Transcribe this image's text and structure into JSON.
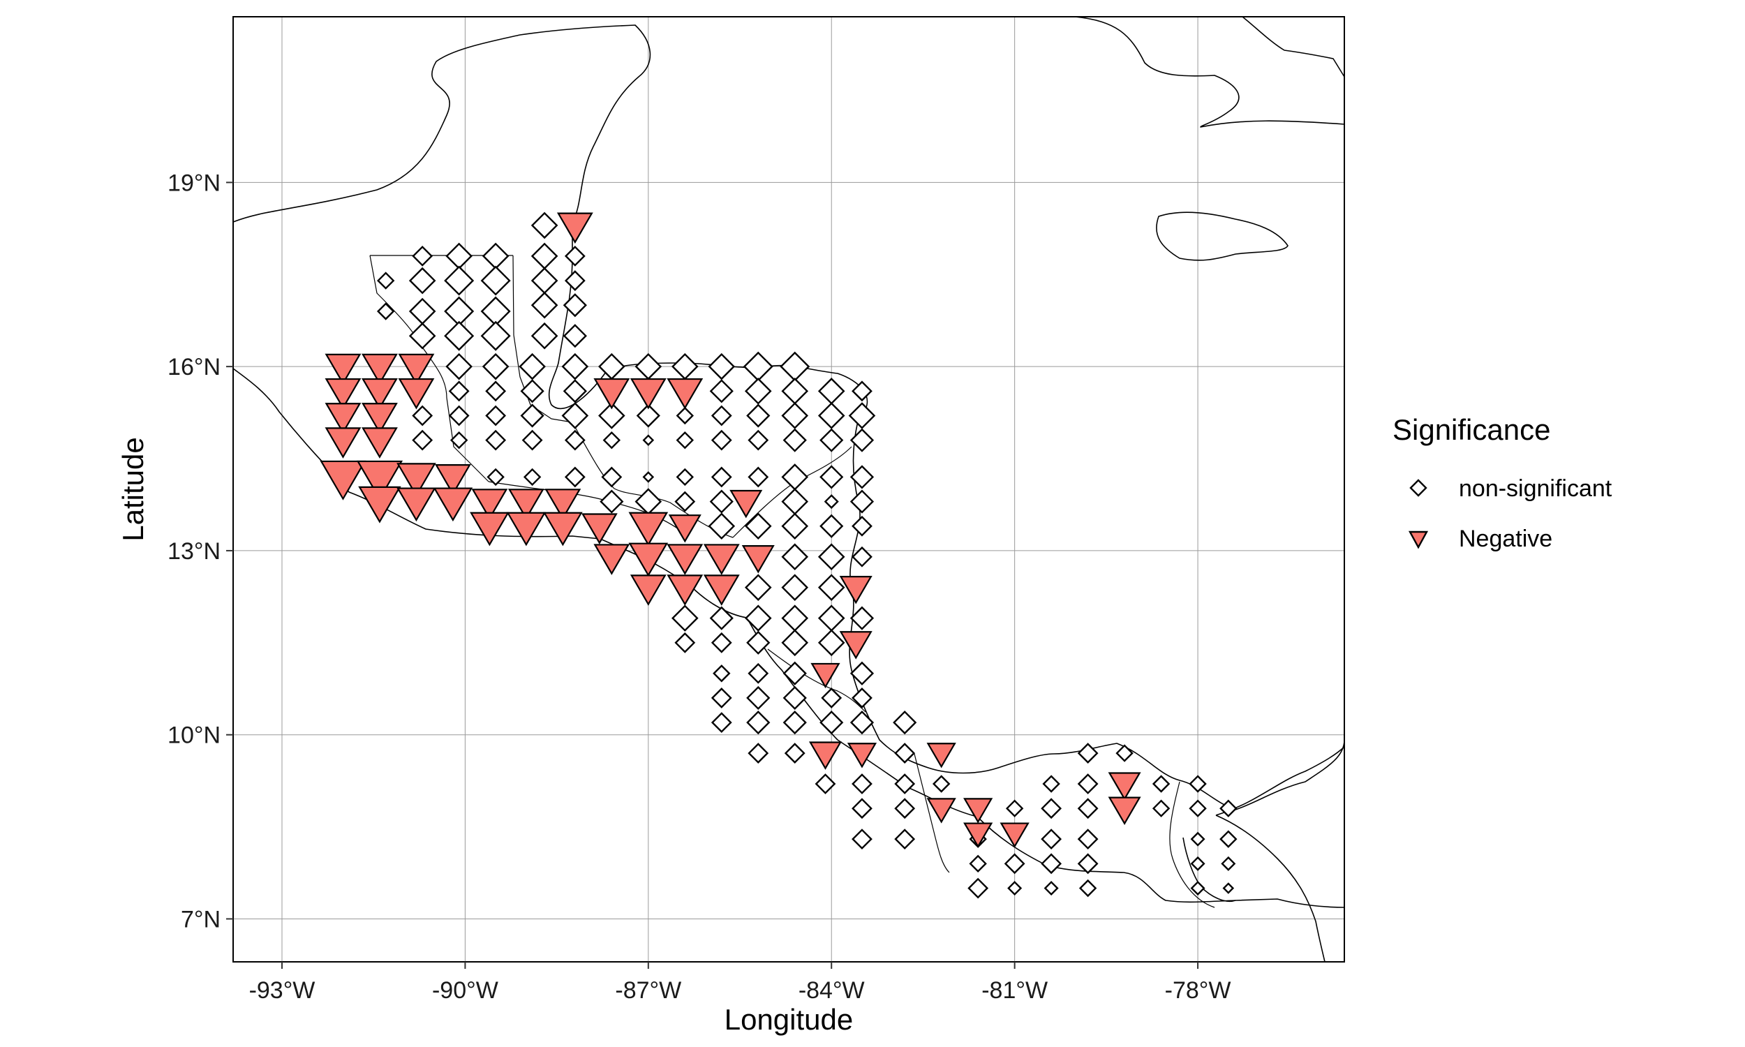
{
  "chart_data": {
    "type": "scatter",
    "title": "",
    "xlabel": "Longitude",
    "ylabel": "Latitude",
    "xlim": [
      -93.8,
      -75.6
    ],
    "ylim": [
      6.3,
      21.7
    ],
    "x_ticks": [
      {
        "value": -93,
        "label": "-93°W"
      },
      {
        "value": -90,
        "label": "-90°W"
      },
      {
        "value": -87,
        "label": "-87°W"
      },
      {
        "value": -84,
        "label": "-84°W"
      },
      {
        "value": -81,
        "label": "-81°W"
      },
      {
        "value": -78,
        "label": "-78°W"
      }
    ],
    "y_ticks": [
      {
        "value": 7,
        "label": "7°N"
      },
      {
        "value": 10,
        "label": "10°N"
      },
      {
        "value": 13,
        "label": "13°N"
      },
      {
        "value": 16,
        "label": "16°N"
      },
      {
        "value": 19,
        "label": "19°N"
      }
    ],
    "grid": true,
    "legend": {
      "title": "Significance",
      "placement": "right",
      "entries": [
        {
          "name": "non-significant",
          "shape": "diamond",
          "color": "#ffffff"
        },
        {
          "name": "Negative",
          "shape": "triangle-down",
          "color": "#F8766D"
        }
      ]
    },
    "colors": {
      "negative": "#F8766D",
      "stroke": "#000000",
      "grid": "#9a9a9a"
    },
    "series": [
      {
        "name": "Negative",
        "shape": "triangle-down",
        "points": [
          [
            -88.2,
            18.3,
            1
          ],
          [
            -92.0,
            16.0,
            1
          ],
          [
            -91.4,
            16.0,
            1
          ],
          [
            -90.8,
            16.0,
            1
          ],
          [
            -92.0,
            15.6,
            1
          ],
          [
            -91.4,
            15.6,
            1
          ],
          [
            -90.8,
            15.6,
            1
          ],
          [
            -87.6,
            15.6,
            1
          ],
          [
            -87.0,
            15.6,
            1
          ],
          [
            -86.4,
            15.6,
            1
          ],
          [
            -92.0,
            15.2,
            1
          ],
          [
            -91.4,
            15.2,
            1
          ],
          [
            -92.0,
            14.8,
            1
          ],
          [
            -91.4,
            14.8,
            1
          ],
          [
            -92.0,
            14.2,
            1.3
          ],
          [
            -91.4,
            14.2,
            1.3
          ],
          [
            -90.8,
            14.2,
            1.1
          ],
          [
            -90.2,
            14.2,
            1
          ],
          [
            -91.4,
            13.8,
            1.2
          ],
          [
            -90.8,
            13.8,
            1.1
          ],
          [
            -90.2,
            13.8,
            1.1
          ],
          [
            -89.6,
            13.8,
            1
          ],
          [
            -89.0,
            13.8,
            1
          ],
          [
            -88.4,
            13.8,
            1
          ],
          [
            -85.4,
            13.8,
            0.9
          ],
          [
            -89.6,
            13.4,
            1.1
          ],
          [
            -89.0,
            13.4,
            1.1
          ],
          [
            -88.4,
            13.4,
            1.1
          ],
          [
            -87.8,
            13.4,
            1
          ],
          [
            -87.0,
            13.4,
            1.1
          ],
          [
            -86.4,
            13.4,
            0.9
          ],
          [
            -87.6,
            12.9,
            1
          ],
          [
            -87.0,
            12.9,
            1.1
          ],
          [
            -86.4,
            12.9,
            1
          ],
          [
            -85.8,
            12.9,
            1
          ],
          [
            -85.2,
            12.9,
            0.9
          ],
          [
            -87.0,
            12.4,
            1
          ],
          [
            -86.4,
            12.4,
            1
          ],
          [
            -85.8,
            12.4,
            1
          ],
          [
            -83.6,
            12.4,
            0.9
          ],
          [
            -83.6,
            11.5,
            0.9
          ],
          [
            -84.1,
            11.0,
            0.8
          ],
          [
            -84.1,
            9.7,
            0.9
          ],
          [
            -83.5,
            9.7,
            0.8
          ],
          [
            -82.2,
            9.7,
            0.8
          ],
          [
            -82.2,
            8.8,
            0.8
          ],
          [
            -81.6,
            8.8,
            0.8
          ],
          [
            -81.6,
            8.4,
            0.8
          ],
          [
            -81.0,
            8.4,
            0.8
          ],
          [
            -79.2,
            9.2,
            0.9
          ],
          [
            -79.2,
            8.8,
            0.9
          ]
        ]
      },
      {
        "name": "non-significant",
        "shape": "diamond",
        "points": [
          [
            -88.7,
            18.3,
            0.8
          ],
          [
            -88.7,
            17.8,
            0.8
          ],
          [
            -88.2,
            17.8,
            0.6
          ],
          [
            -88.7,
            17.4,
            0.8
          ],
          [
            -88.2,
            17.4,
            0.6
          ],
          [
            -88.7,
            17.0,
            0.8
          ],
          [
            -88.2,
            17.0,
            0.7
          ],
          [
            -88.7,
            16.5,
            0.8
          ],
          [
            -88.2,
            16.5,
            0.7
          ],
          [
            -91.3,
            17.4,
            0.5
          ],
          [
            -91.3,
            16.9,
            0.5
          ],
          [
            -90.7,
            17.8,
            0.6
          ],
          [
            -90.1,
            17.8,
            0.8
          ],
          [
            -89.5,
            17.8,
            0.8
          ],
          [
            -90.7,
            17.4,
            0.8
          ],
          [
            -90.1,
            17.4,
            0.9
          ],
          [
            -89.5,
            17.4,
            0.9
          ],
          [
            -90.7,
            16.9,
            0.8
          ],
          [
            -90.1,
            16.9,
            0.9
          ],
          [
            -89.5,
            16.9,
            0.9
          ],
          [
            -90.7,
            16.5,
            0.8
          ],
          [
            -90.1,
            16.5,
            0.9
          ],
          [
            -89.5,
            16.5,
            0.9
          ],
          [
            -90.1,
            16.0,
            0.8
          ],
          [
            -89.5,
            16.0,
            0.8
          ],
          [
            -88.9,
            16.0,
            0.8
          ],
          [
            -88.2,
            16.0,
            0.8
          ],
          [
            -87.6,
            16.0,
            0.8
          ],
          [
            -87.0,
            16.0,
            0.8
          ],
          [
            -86.4,
            16.0,
            0.8
          ],
          [
            -85.8,
            16.0,
            0.8
          ],
          [
            -85.2,
            16.0,
            0.9
          ],
          [
            -84.6,
            16.0,
            0.9
          ],
          [
            -90.1,
            15.6,
            0.6
          ],
          [
            -89.5,
            15.6,
            0.6
          ],
          [
            -88.9,
            15.6,
            0.7
          ],
          [
            -88.2,
            15.6,
            0.7
          ],
          [
            -85.8,
            15.6,
            0.7
          ],
          [
            -85.2,
            15.6,
            0.8
          ],
          [
            -84.6,
            15.6,
            0.8
          ],
          [
            -84.0,
            15.6,
            0.8
          ],
          [
            -83.5,
            15.6,
            0.6
          ],
          [
            -90.7,
            15.2,
            0.6
          ],
          [
            -90.1,
            15.2,
            0.6
          ],
          [
            -89.5,
            15.2,
            0.6
          ],
          [
            -88.9,
            15.2,
            0.7
          ],
          [
            -88.2,
            15.2,
            0.8
          ],
          [
            -87.6,
            15.2,
            0.8
          ],
          [
            -87.0,
            15.2,
            0.7
          ],
          [
            -86.4,
            15.2,
            0.5
          ],
          [
            -85.8,
            15.2,
            0.6
          ],
          [
            -85.2,
            15.2,
            0.7
          ],
          [
            -84.6,
            15.2,
            0.8
          ],
          [
            -84.0,
            15.2,
            0.8
          ],
          [
            -83.5,
            15.2,
            0.8
          ],
          [
            -90.7,
            14.8,
            0.6
          ],
          [
            -90.1,
            14.8,
            0.5
          ],
          [
            -89.5,
            14.8,
            0.6
          ],
          [
            -88.9,
            14.8,
            0.6
          ],
          [
            -88.2,
            14.8,
            0.6
          ],
          [
            -87.6,
            14.8,
            0.5
          ],
          [
            -87.0,
            14.8,
            0.3
          ],
          [
            -86.4,
            14.8,
            0.5
          ],
          [
            -85.8,
            14.8,
            0.6
          ],
          [
            -85.2,
            14.8,
            0.6
          ],
          [
            -84.6,
            14.8,
            0.7
          ],
          [
            -84.0,
            14.8,
            0.7
          ],
          [
            -83.5,
            14.8,
            0.7
          ],
          [
            -89.5,
            14.2,
            0.5
          ],
          [
            -88.9,
            14.2,
            0.5
          ],
          [
            -88.2,
            14.2,
            0.6
          ],
          [
            -87.6,
            14.2,
            0.6
          ],
          [
            -87.0,
            14.2,
            0.3
          ],
          [
            -86.4,
            14.2,
            0.5
          ],
          [
            -85.8,
            14.2,
            0.6
          ],
          [
            -85.2,
            14.2,
            0.6
          ],
          [
            -84.6,
            14.2,
            0.8
          ],
          [
            -84.0,
            14.2,
            0.7
          ],
          [
            -83.5,
            14.2,
            0.7
          ],
          [
            -87.6,
            13.8,
            0.7
          ],
          [
            -87.0,
            13.8,
            0.8
          ],
          [
            -86.4,
            13.8,
            0.6
          ],
          [
            -85.8,
            13.8,
            0.7
          ],
          [
            -84.6,
            13.8,
            0.8
          ],
          [
            -84.0,
            13.8,
            0.4
          ],
          [
            -83.5,
            13.8,
            0.7
          ],
          [
            -85.8,
            13.4,
            0.8
          ],
          [
            -85.2,
            13.4,
            0.8
          ],
          [
            -84.6,
            13.4,
            0.8
          ],
          [
            -84.0,
            13.4,
            0.7
          ],
          [
            -83.5,
            13.4,
            0.6
          ],
          [
            -84.6,
            12.9,
            0.8
          ],
          [
            -84.0,
            12.9,
            0.8
          ],
          [
            -83.5,
            12.9,
            0.6
          ],
          [
            -85.2,
            12.4,
            0.8
          ],
          [
            -84.6,
            12.4,
            0.8
          ],
          [
            -84.0,
            12.4,
            0.8
          ],
          [
            -86.4,
            11.9,
            0.8
          ],
          [
            -85.8,
            11.9,
            0.7
          ],
          [
            -85.2,
            11.9,
            0.8
          ],
          [
            -84.6,
            11.9,
            0.8
          ],
          [
            -84.0,
            11.9,
            0.8
          ],
          [
            -83.5,
            11.9,
            0.7
          ],
          [
            -86.4,
            11.5,
            0.6
          ],
          [
            -85.8,
            11.5,
            0.6
          ],
          [
            -85.2,
            11.5,
            0.7
          ],
          [
            -84.6,
            11.5,
            0.8
          ],
          [
            -84.0,
            11.5,
            0.8
          ],
          [
            -85.8,
            11.0,
            0.5
          ],
          [
            -85.2,
            11.0,
            0.6
          ],
          [
            -84.6,
            11.0,
            0.7
          ],
          [
            -83.5,
            11.0,
            0.7
          ],
          [
            -85.8,
            10.6,
            0.6
          ],
          [
            -85.2,
            10.6,
            0.7
          ],
          [
            -84.6,
            10.6,
            0.7
          ],
          [
            -84.0,
            10.6,
            0.6
          ],
          [
            -83.5,
            10.6,
            0.6
          ],
          [
            -85.8,
            10.2,
            0.6
          ],
          [
            -85.2,
            10.2,
            0.7
          ],
          [
            -84.6,
            10.2,
            0.7
          ],
          [
            -84.0,
            10.2,
            0.7
          ],
          [
            -83.5,
            10.2,
            0.7
          ],
          [
            -82.8,
            10.2,
            0.7
          ],
          [
            -85.2,
            9.7,
            0.6
          ],
          [
            -84.6,
            9.7,
            0.6
          ],
          [
            -82.8,
            9.7,
            0.6
          ],
          [
            -84.1,
            9.2,
            0.6
          ],
          [
            -83.5,
            9.2,
            0.6
          ],
          [
            -82.8,
            9.2,
            0.6
          ],
          [
            -82.2,
            9.2,
            0.5
          ],
          [
            -83.5,
            8.8,
            0.6
          ],
          [
            -82.8,
            8.8,
            0.6
          ],
          [
            -81.0,
            8.8,
            0.5
          ],
          [
            -80.4,
            8.8,
            0.6
          ],
          [
            -79.8,
            8.8,
            0.6
          ],
          [
            -78.6,
            8.8,
            0.5
          ],
          [
            -78.0,
            8.8,
            0.5
          ],
          [
            -77.5,
            8.8,
            0.5
          ],
          [
            -80.4,
            9.2,
            0.5
          ],
          [
            -79.8,
            9.2,
            0.6
          ],
          [
            -78.6,
            9.2,
            0.5
          ],
          [
            -78.0,
            9.2,
            0.5
          ],
          [
            -79.8,
            9.7,
            0.6
          ],
          [
            -79.2,
            9.7,
            0.5
          ],
          [
            -83.5,
            8.3,
            0.6
          ],
          [
            -82.8,
            8.3,
            0.6
          ],
          [
            -81.6,
            8.3,
            0.5
          ],
          [
            -80.4,
            8.3,
            0.6
          ],
          [
            -79.8,
            8.3,
            0.6
          ],
          [
            -78.0,
            8.3,
            0.4
          ],
          [
            -77.5,
            8.3,
            0.5
          ],
          [
            -81.6,
            7.9,
            0.5
          ],
          [
            -81.0,
            7.9,
            0.6
          ],
          [
            -80.4,
            7.9,
            0.6
          ],
          [
            -79.8,
            7.9,
            0.6
          ],
          [
            -78.0,
            7.9,
            0.4
          ],
          [
            -77.5,
            7.9,
            0.4
          ],
          [
            -81.6,
            7.5,
            0.6
          ],
          [
            -81.0,
            7.5,
            0.4
          ],
          [
            -80.4,
            7.5,
            0.4
          ],
          [
            -79.8,
            7.5,
            0.5
          ],
          [
            -78.0,
            7.5,
            0.4
          ],
          [
            -77.5,
            7.5,
            0.3
          ]
        ]
      }
    ]
  }
}
